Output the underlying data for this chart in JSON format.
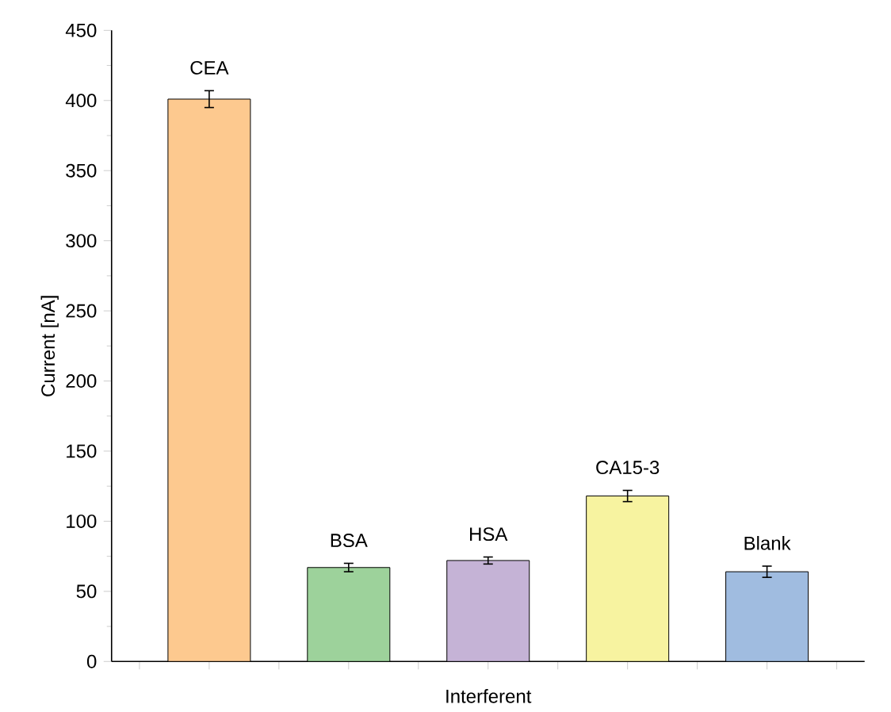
{
  "chart_data": {
    "type": "bar",
    "xlabel": "Interferent",
    "ylabel": "Current [nA]",
    "categories": [
      "CEA",
      "BSA",
      "HSA",
      "CA15-3",
      "Blank"
    ],
    "values": [
      401,
      67,
      72,
      118,
      64
    ],
    "errors": [
      6,
      3,
      2.5,
      4,
      4
    ],
    "colors": [
      "#fdc98f",
      "#9dd29b",
      "#c5b3d6",
      "#f7f3a0",
      "#a0bce0"
    ],
    "ylim": [
      0,
      450
    ],
    "yticks": [
      0,
      50,
      100,
      150,
      200,
      250,
      300,
      350,
      400,
      450
    ],
    "tick_labels": "y"
  }
}
